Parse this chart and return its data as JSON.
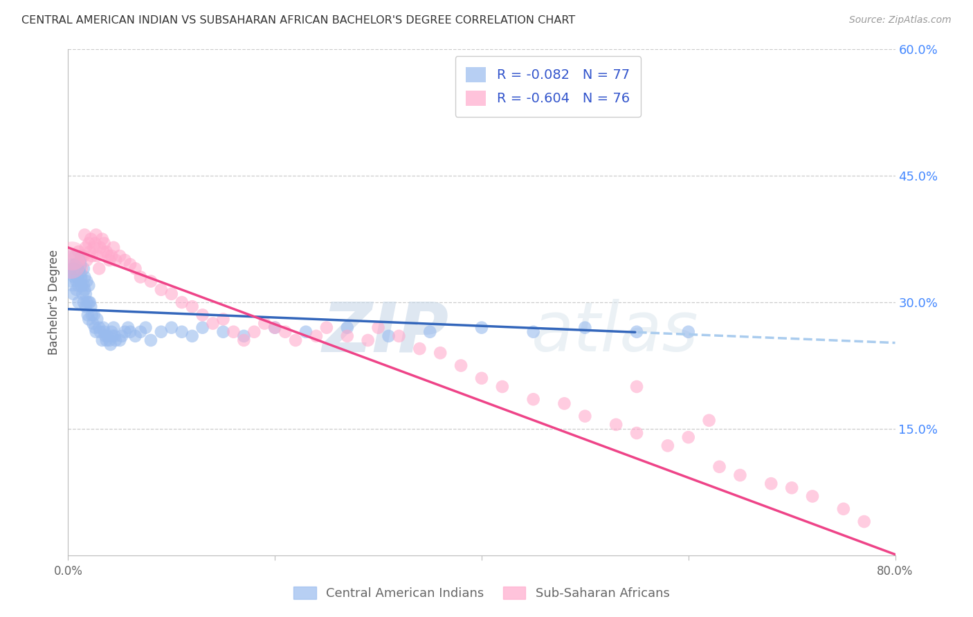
{
  "title": "CENTRAL AMERICAN INDIAN VS SUBSAHARAN AFRICAN BACHELOR'S DEGREE CORRELATION CHART",
  "source": "Source: ZipAtlas.com",
  "ylabel": "Bachelor's Degree",
  "x_min": 0.0,
  "x_max": 0.8,
  "y_min": 0.0,
  "y_max": 0.6,
  "blue_color": "#99BBEE",
  "pink_color": "#FFAACC",
  "blue_line_color": "#3366BB",
  "pink_line_color": "#EE4488",
  "dashed_line_color": "#AACCEE",
  "grid_color": "#CCCCCC",
  "right_axis_color": "#4488FF",
  "legend_R1": "-0.082",
  "legend_N1": "77",
  "legend_R2": "-0.604",
  "legend_N2": "76",
  "label1": "Central American Indians",
  "label2": "Sub-Saharan Africans",
  "blue_intercept": 0.292,
  "blue_slope": -0.05,
  "pink_intercept": 0.365,
  "pink_slope": -0.455,
  "watermark_zip": "ZIP",
  "watermark_atlas": "atlas",
  "blue_scatter_x": [
    0.005,
    0.005,
    0.005,
    0.006,
    0.007,
    0.008,
    0.008,
    0.009,
    0.01,
    0.01,
    0.01,
    0.012,
    0.013,
    0.013,
    0.014,
    0.015,
    0.015,
    0.015,
    0.016,
    0.016,
    0.017,
    0.017,
    0.018,
    0.018,
    0.019,
    0.02,
    0.02,
    0.02,
    0.021,
    0.022,
    0.023,
    0.024,
    0.025,
    0.026,
    0.027,
    0.028,
    0.03,
    0.031,
    0.033,
    0.034,
    0.035,
    0.036,
    0.037,
    0.038,
    0.04,
    0.041,
    0.042,
    0.043,
    0.044,
    0.045,
    0.046,
    0.05,
    0.052,
    0.055,
    0.058,
    0.06,
    0.065,
    0.07,
    0.075,
    0.08,
    0.09,
    0.1,
    0.11,
    0.12,
    0.13,
    0.15,
    0.17,
    0.2,
    0.23,
    0.27,
    0.31,
    0.35,
    0.4,
    0.45,
    0.5,
    0.55,
    0.6
  ],
  "blue_scatter_y": [
    0.335,
    0.34,
    0.31,
    0.33,
    0.345,
    0.325,
    0.315,
    0.33,
    0.345,
    0.32,
    0.3,
    0.33,
    0.355,
    0.32,
    0.31,
    0.34,
    0.32,
    0.3,
    0.33,
    0.315,
    0.31,
    0.295,
    0.325,
    0.3,
    0.285,
    0.32,
    0.3,
    0.28,
    0.3,
    0.295,
    0.285,
    0.275,
    0.285,
    0.27,
    0.265,
    0.28,
    0.27,
    0.265,
    0.255,
    0.27,
    0.265,
    0.26,
    0.255,
    0.26,
    0.255,
    0.25,
    0.265,
    0.26,
    0.27,
    0.26,
    0.255,
    0.255,
    0.26,
    0.265,
    0.27,
    0.265,
    0.26,
    0.265,
    0.27,
    0.255,
    0.265,
    0.27,
    0.265,
    0.26,
    0.27,
    0.265,
    0.26,
    0.27,
    0.265,
    0.27,
    0.26,
    0.265,
    0.27,
    0.265,
    0.27,
    0.265,
    0.265
  ],
  "pink_scatter_x": [
    0.005,
    0.007,
    0.008,
    0.01,
    0.012,
    0.013,
    0.015,
    0.016,
    0.017,
    0.018,
    0.02,
    0.021,
    0.022,
    0.023,
    0.025,
    0.026,
    0.027,
    0.028,
    0.03,
    0.031,
    0.033,
    0.034,
    0.035,
    0.037,
    0.039,
    0.04,
    0.042,
    0.044,
    0.046,
    0.05,
    0.055,
    0.06,
    0.065,
    0.07,
    0.08,
    0.09,
    0.1,
    0.11,
    0.12,
    0.13,
    0.14,
    0.15,
    0.16,
    0.17,
    0.18,
    0.19,
    0.2,
    0.21,
    0.22,
    0.24,
    0.25,
    0.27,
    0.29,
    0.3,
    0.32,
    0.34,
    0.36,
    0.38,
    0.4,
    0.42,
    0.45,
    0.48,
    0.5,
    0.53,
    0.55,
    0.58,
    0.6,
    0.63,
    0.65,
    0.68,
    0.7,
    0.72,
    0.75,
    0.77,
    0.55,
    0.62
  ],
  "pink_scatter_y": [
    0.34,
    0.355,
    0.345,
    0.36,
    0.35,
    0.34,
    0.355,
    0.38,
    0.365,
    0.35,
    0.37,
    0.36,
    0.375,
    0.355,
    0.365,
    0.37,
    0.38,
    0.355,
    0.34,
    0.365,
    0.375,
    0.36,
    0.37,
    0.36,
    0.355,
    0.35,
    0.355,
    0.365,
    0.35,
    0.355,
    0.35,
    0.345,
    0.34,
    0.33,
    0.325,
    0.315,
    0.31,
    0.3,
    0.295,
    0.285,
    0.275,
    0.28,
    0.265,
    0.255,
    0.265,
    0.275,
    0.27,
    0.265,
    0.255,
    0.26,
    0.27,
    0.26,
    0.255,
    0.27,
    0.26,
    0.245,
    0.24,
    0.225,
    0.21,
    0.2,
    0.185,
    0.18,
    0.165,
    0.155,
    0.145,
    0.13,
    0.14,
    0.105,
    0.095,
    0.085,
    0.08,
    0.07,
    0.055,
    0.04,
    0.2,
    0.16
  ]
}
